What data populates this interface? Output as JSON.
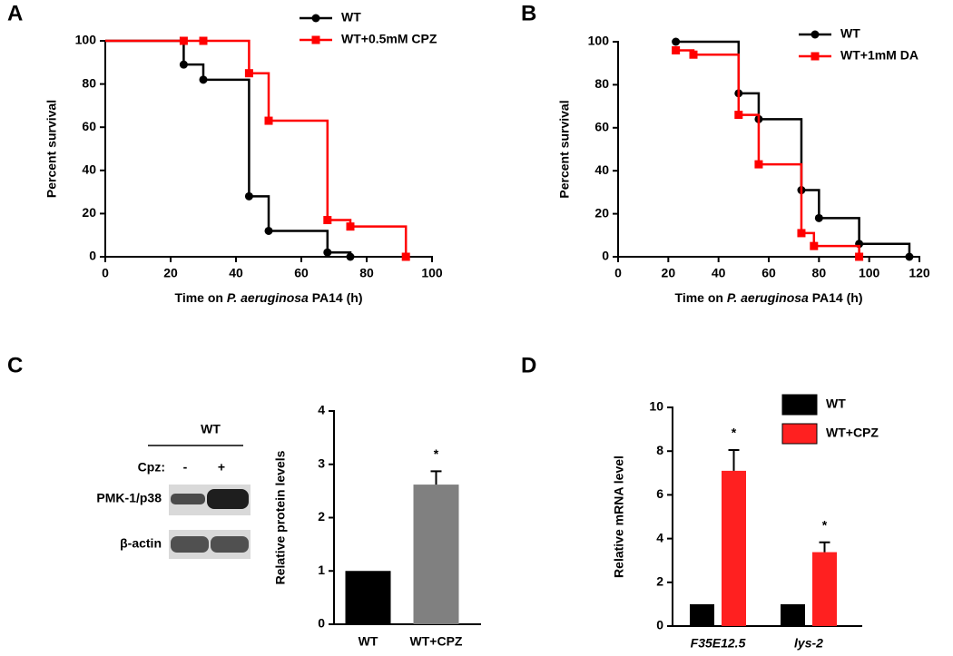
{
  "panel_labels": [
    "A",
    "B",
    "C",
    "D"
  ],
  "blot": {
    "group": "WT",
    "treatment_label": "Cpz:",
    "lanes": [
      "-",
      "+"
    ],
    "rows": [
      "PMK-1/p38",
      "β-actin"
    ]
  },
  "chart_data": [
    {
      "type": "step",
      "xlabel": [
        "Time on ",
        "P. aeruginosa",
        " PA14 (h)"
      ],
      "ylabel": "Percent survival",
      "xlim": [
        0,
        100
      ],
      "xticks": [
        0,
        20,
        40,
        60,
        80,
        100
      ],
      "ylim": [
        0,
        100
      ],
      "yticks": [
        0,
        20,
        40,
        60,
        80,
        100
      ],
      "series": [
        {
          "name": "WT",
          "color": "#000000",
          "marker": "circle",
          "x": [
            0,
            24,
            30,
            44,
            50,
            68,
            75
          ],
          "values": [
            100,
            89,
            82,
            28,
            12,
            2,
            0
          ]
        },
        {
          "name": "WT+0.5mM CPZ",
          "color": "#ff0000",
          "marker": "square",
          "x": [
            0,
            24,
            30,
            44,
            50,
            68,
            75,
            92
          ],
          "values": [
            100,
            100,
            100,
            85,
            63,
            17,
            14,
            0
          ]
        }
      ]
    },
    {
      "type": "step",
      "xlabel": [
        "Time on ",
        "P. aeruginosa",
        " PA14 (h)"
      ],
      "ylabel": "Percent survival",
      "xlim": [
        0,
        120
      ],
      "xticks": [
        0,
        20,
        40,
        60,
        80,
        100,
        120
      ],
      "ylim": [
        0,
        100
      ],
      "yticks": [
        0,
        20,
        40,
        60,
        80,
        100
      ],
      "series": [
        {
          "name": "WT",
          "color": "#000000",
          "marker": "circle",
          "x": [
            23,
            48,
            56,
            73,
            80,
            96,
            116
          ],
          "values": [
            100,
            76,
            64,
            31,
            18,
            6,
            0
          ]
        },
        {
          "name": "WT+1mM DA",
          "color": "#ff0000",
          "marker": "square",
          "x": [
            23,
            30,
            48,
            56,
            73,
            78,
            96
          ],
          "values": [
            96,
            94,
            66,
            43,
            11,
            5,
            0
          ]
        }
      ]
    },
    {
      "type": "bar",
      "ylabel": "Relative protein levels",
      "categories": [
        "WT",
        "WT+CPZ"
      ],
      "values": [
        1,
        2.62
      ],
      "errors": [
        null,
        0.25
      ],
      "marks": [
        null,
        "*"
      ],
      "colors": [
        "#000000",
        "#808080"
      ],
      "ylim": [
        0,
        4
      ],
      "yticks": [
        0,
        1,
        2,
        3,
        4
      ]
    },
    {
      "type": "groupbar",
      "ylabel": "Relative mRNA level",
      "categories": [
        "F35E12.5",
        "lys-2"
      ],
      "ylim": [
        0,
        10
      ],
      "yticks": [
        0,
        2,
        4,
        6,
        8,
        10
      ],
      "series": [
        {
          "name": "WT",
          "color": "#000000",
          "values": [
            1,
            1
          ]
        },
        {
          "name": "WT+CPZ",
          "color": "#ff2020",
          "values": [
            7.1,
            3.38
          ],
          "errors": [
            0.95,
            0.45
          ],
          "marks": [
            "*",
            "*"
          ]
        }
      ]
    }
  ]
}
